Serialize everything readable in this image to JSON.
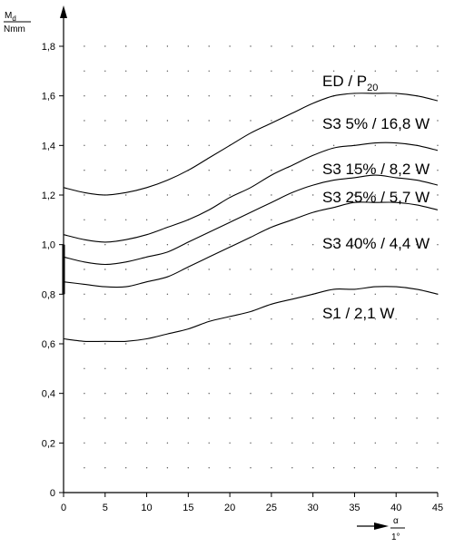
{
  "chart_data": {
    "type": "line",
    "title": "",
    "x": [
      0,
      2.5,
      5,
      7.5,
      10,
      12.5,
      15,
      17.5,
      20,
      22.5,
      25,
      27.5,
      30,
      32.5,
      35,
      37.5,
      40,
      42.5,
      45
    ],
    "xticks": [
      "0",
      "5",
      "10",
      "15",
      "20",
      "25",
      "30",
      "35",
      "40",
      "45"
    ],
    "yticks": [
      "0",
      "0,2",
      "0,4",
      "0,6",
      "0,8",
      "1,0",
      "1,2",
      "1,4",
      "1,6",
      "1,8"
    ],
    "xlim": [
      0,
      45
    ],
    "ylim": [
      0,
      1.8
    ],
    "xlabel": {
      "top": "α",
      "bottom": "1°"
    },
    "ylabel": {
      "top": "M",
      "sub": "d",
      "bottom": "Nmm"
    },
    "grid": "dotted",
    "series": [
      {
        "name": "ED / P",
        "name_sub": "20",
        "values": [
          1.23,
          1.21,
          1.2,
          1.21,
          1.23,
          1.26,
          1.3,
          1.35,
          1.4,
          1.45,
          1.49,
          1.53,
          1.57,
          1.6,
          1.61,
          1.61,
          1.61,
          1.6,
          1.58
        ]
      },
      {
        "name": "S3 5% / 16,8 W",
        "values": [
          1.04,
          1.02,
          1.01,
          1.02,
          1.04,
          1.07,
          1.1,
          1.14,
          1.19,
          1.23,
          1.28,
          1.32,
          1.36,
          1.39,
          1.4,
          1.41,
          1.41,
          1.4,
          1.38
        ]
      },
      {
        "name": "S3 15% / 8,2 W",
        "values": [
          0.95,
          0.93,
          0.92,
          0.93,
          0.95,
          0.97,
          1.01,
          1.05,
          1.09,
          1.13,
          1.17,
          1.21,
          1.24,
          1.26,
          1.27,
          1.28,
          1.27,
          1.26,
          1.24
        ]
      },
      {
        "name": "S3 25% / 5,7 W",
        "values": [
          0.85,
          0.84,
          0.83,
          0.83,
          0.85,
          0.87,
          0.91,
          0.95,
          0.99,
          1.03,
          1.07,
          1.1,
          1.13,
          1.15,
          1.17,
          1.17,
          1.17,
          1.16,
          1.14
        ]
      },
      {
        "name": "S3 40% / 4,4 W",
        "values": [
          null,
          null,
          null,
          null,
          null,
          null,
          null,
          null,
          null,
          null,
          null,
          null,
          null,
          null,
          null,
          null,
          null,
          null,
          null
        ]
      },
      {
        "name": "S1 / 2,1 W",
        "values": [
          0.62,
          0.61,
          0.61,
          0.61,
          0.62,
          0.64,
          0.66,
          0.69,
          0.71,
          0.73,
          0.76,
          0.78,
          0.8,
          0.82,
          0.82,
          0.83,
          0.83,
          0.82,
          0.8
        ]
      }
    ]
  }
}
